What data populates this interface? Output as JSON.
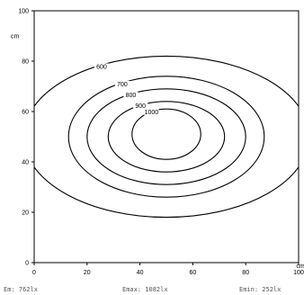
{
  "chart_data": {
    "type": "contour",
    "x_axis": {
      "min": 0,
      "max": 100,
      "ticks": [
        0,
        20,
        40,
        60,
        80,
        100
      ],
      "unit": "cm"
    },
    "y_axis": {
      "min": 0,
      "max": 100,
      "ticks": [
        0,
        20,
        40,
        60,
        80,
        100
      ],
      "unit": "cm"
    },
    "grid": false,
    "contours": [
      {
        "level": "600",
        "label": "600",
        "cx": 50,
        "cy": 50,
        "rx": 54,
        "ry": 32
      },
      {
        "level": "700",
        "label": "700",
        "cx": 50,
        "cy": 50,
        "rx": 37,
        "ry": 24
      },
      {
        "level": "800",
        "label": "800",
        "cx": 50,
        "cy": 50,
        "rx": 30,
        "ry": 19
      },
      {
        "level": "900",
        "label": "900",
        "cx": 50,
        "cy": 50,
        "rx": 22,
        "ry": 14
      },
      {
        "level": "1000",
        "label": "1000",
        "cx": 50,
        "cy": 51,
        "rx": 13,
        "ry": 10
      }
    ],
    "stats": [
      {
        "label": "Em:",
        "value": "762lx"
      },
      {
        "label": "Emax:",
        "value": "1082lx"
      },
      {
        "label": "Emin:",
        "value": "252lx"
      }
    ]
  }
}
